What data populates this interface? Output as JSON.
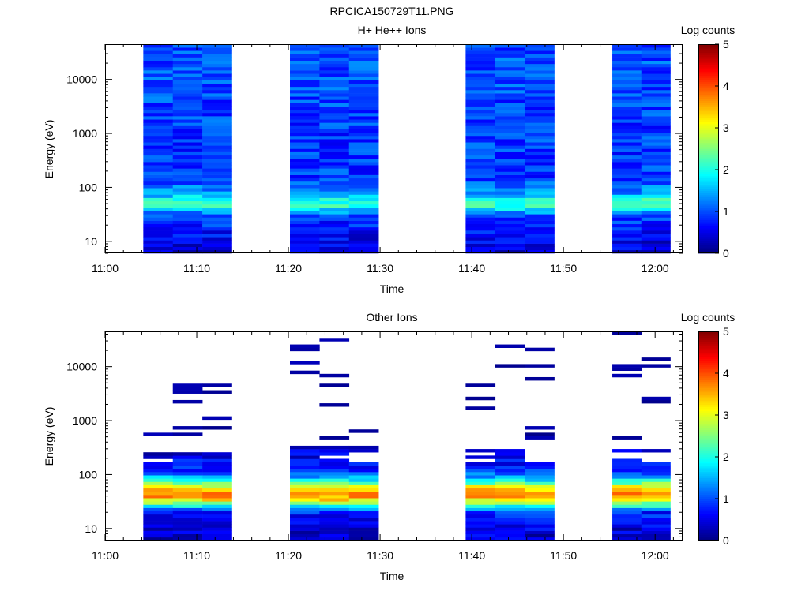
{
  "figure_title": "RPCICA150729T11.PNG",
  "chart_data": [
    {
      "type": "heatmap",
      "title": "H+ He++ Ions",
      "xlabel": "Time",
      "ylabel": "Energy (eV)",
      "yscale": "log",
      "xlim": [
        "11:00",
        "12:03"
      ],
      "ylim": [
        6,
        45000
      ],
      "x_ticks": [
        "11:00",
        "11:10",
        "11:20",
        "11:30",
        "11:40",
        "11:50",
        "12:00"
      ],
      "y_ticks": [
        "10",
        "100",
        "1000",
        "10000"
      ],
      "colorbar": {
        "label": "Log counts",
        "range": [
          0,
          5
        ],
        "ticks": [
          "0",
          "1",
          "2",
          "3",
          "4",
          "5"
        ]
      },
      "grid": false,
      "data_blocks": [
        {
          "start": "11:04:10",
          "end": "11:13:50"
        },
        {
          "start": "11:20:10",
          "end": "11:29:50"
        },
        {
          "start": "11:39:20",
          "end": "11:49:00"
        },
        {
          "start": "11:55:20",
          "end": "12:01:40"
        }
      ],
      "profile": [
        {
          "energy": 8,
          "log_counts": 0.5
        },
        {
          "energy": 12,
          "log_counts": 0.6
        },
        {
          "energy": 20,
          "log_counts": 0.8
        },
        {
          "energy": 30,
          "log_counts": 1.0
        },
        {
          "energy": 45,
          "log_counts": 2.0
        },
        {
          "energy": 55,
          "log_counts": 2.2
        },
        {
          "energy": 75,
          "log_counts": 1.4
        },
        {
          "energy": 150,
          "log_counts": 0.9
        },
        {
          "energy": 1000,
          "log_counts": 0.9
        },
        {
          "energy": 10000,
          "log_counts": 1.0
        },
        {
          "energy": 40000,
          "log_counts": 1.0
        }
      ]
    },
    {
      "type": "heatmap",
      "title": "Other Ions",
      "xlabel": "Time",
      "ylabel": "Energy (eV)",
      "yscale": "log",
      "xlim": [
        "11:00",
        "12:03"
      ],
      "ylim": [
        6,
        45000
      ],
      "x_ticks": [
        "11:00",
        "11:10",
        "11:20",
        "11:30",
        "11:40",
        "11:50",
        "12:00"
      ],
      "y_ticks": [
        "10",
        "100",
        "1000",
        "10000"
      ],
      "colorbar": {
        "label": "Log counts",
        "range": [
          0,
          5
        ],
        "ticks": [
          "0",
          "1",
          "2",
          "3",
          "4",
          "5"
        ]
      },
      "grid": false,
      "data_blocks": [
        {
          "start": "11:04:10",
          "end": "11:13:50"
        },
        {
          "start": "11:20:10",
          "end": "11:29:50"
        },
        {
          "start": "11:39:20",
          "end": "11:49:00"
        },
        {
          "start": "11:55:20",
          "end": "12:01:40"
        }
      ],
      "profile": [
        {
          "energy": 8,
          "log_counts": 0.4
        },
        {
          "energy": 12,
          "log_counts": 0.5
        },
        {
          "energy": 20,
          "log_counts": 0.8
        },
        {
          "energy": 28,
          "log_counts": 2.2
        },
        {
          "energy": 35,
          "log_counts": 3.3
        },
        {
          "energy": 45,
          "log_counts": 3.8
        },
        {
          "energy": 60,
          "log_counts": 3.0
        },
        {
          "energy": 80,
          "log_counts": 1.8
        },
        {
          "energy": 120,
          "log_counts": 0.8
        },
        {
          "energy": 250,
          "log_counts": 0.4
        },
        {
          "energy": 3000,
          "log_counts": 0.1
        }
      ]
    }
  ]
}
